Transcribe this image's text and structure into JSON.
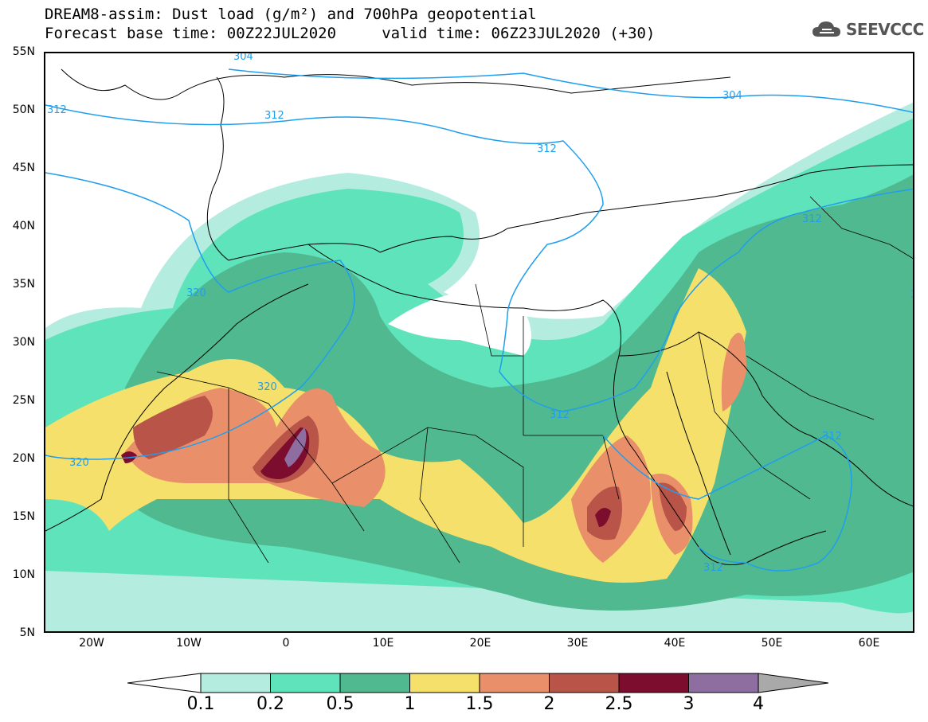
{
  "header": {
    "title_line1": "DREAM8-assim: Dust load (g/m²) and 700hPa geopotential",
    "title_line2": "Forecast base time: 00Z22JUL2020     valid time: 06Z23JUL2020 (+30)",
    "logo_text": "SEEVCCC"
  },
  "axes": {
    "lat_labels": [
      "55N",
      "50N",
      "45N",
      "40N",
      "35N",
      "30N",
      "25N",
      "20N",
      "15N",
      "10N",
      "5N"
    ],
    "lon_labels": [
      "20W",
      "10W",
      "0",
      "10E",
      "20E",
      "30E",
      "40E",
      "50E",
      "60E"
    ]
  },
  "contours": {
    "labels": [
      "304",
      "304",
      "312",
      "312",
      "312",
      "320",
      "320",
      "312",
      "312",
      "320",
      "312",
      "312",
      "312"
    ]
  },
  "colorbar": {
    "labels": [
      "0.1",
      "0.2",
      "0.5",
      "1",
      "1.5",
      "2",
      "2.5",
      "3",
      "4"
    ],
    "colors": [
      "#b5ece0",
      "#5fe3bb",
      "#51b98f",
      "#f4e06a",
      "#e9906a",
      "#b85548",
      "#7d0d2e",
      "#8e6ea0",
      "#a9a9a9"
    ]
  },
  "map_colors": {
    "land_outline": "#000000",
    "geopotential": "#1f9ef0"
  }
}
